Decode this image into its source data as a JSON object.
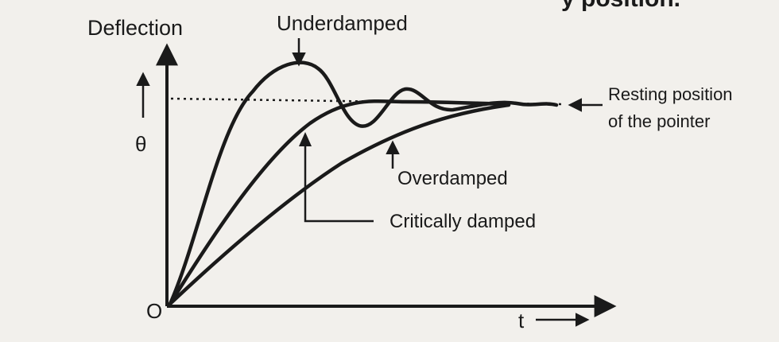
{
  "header_fragment": "y position.",
  "axes": {
    "y_title": "Deflection",
    "y_symbol": "θ",
    "x_symbol": "t",
    "origin": "O"
  },
  "reference_line": {
    "label_line1": "Resting position",
    "label_line2": "of the pointer"
  },
  "curves": [
    {
      "id": "underdamped",
      "label": "Underdamped"
    },
    {
      "id": "critically_damped",
      "label": "Critically damped"
    },
    {
      "id": "overdamped",
      "label": "Overdamped"
    }
  ],
  "colors": {
    "background": "#f2f0ec",
    "ink": "#1a1a1a"
  }
}
